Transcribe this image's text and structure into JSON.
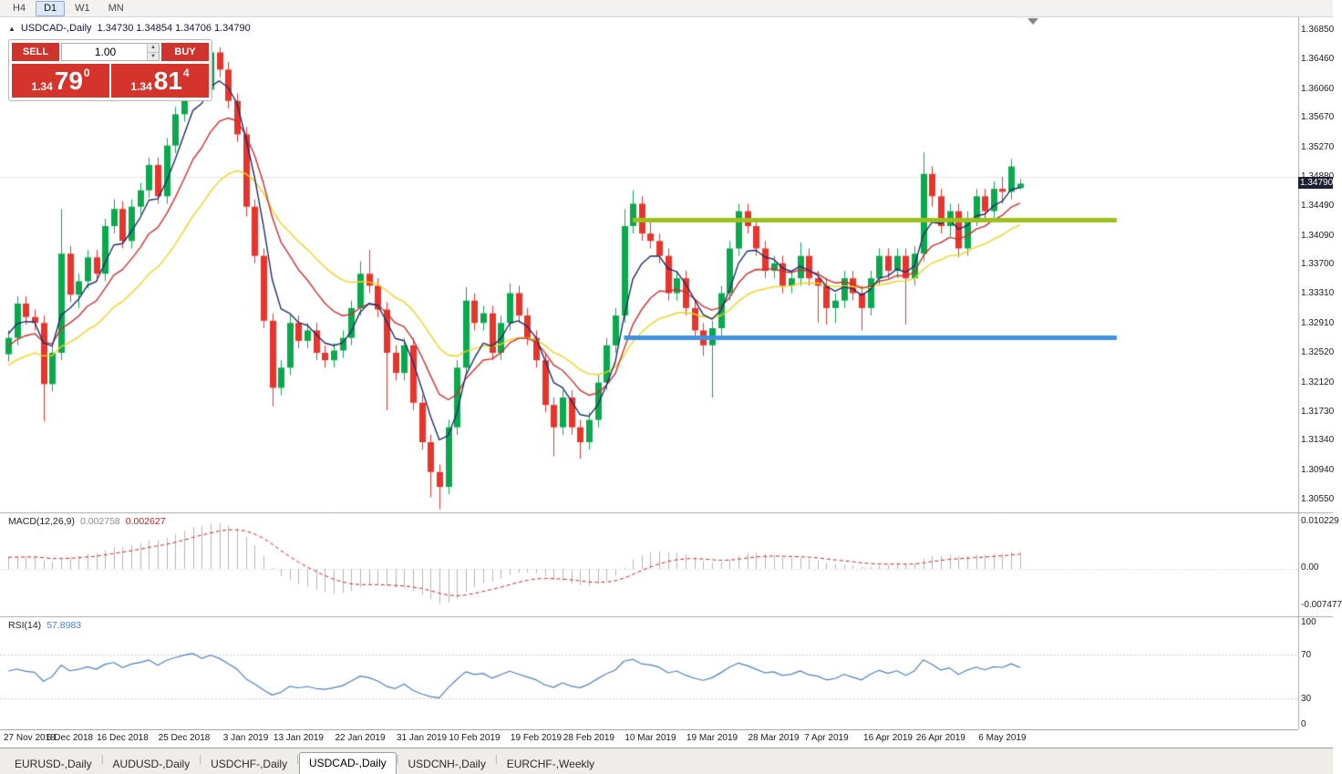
{
  "toolbar": {
    "timeframes": [
      "H4",
      "D1",
      "W1",
      "MN"
    ],
    "active_timeframe": "D1"
  },
  "chart": {
    "symbol": "USDCAD-,Daily",
    "ohlc": "1.34730 1.34854 1.34706 1.34790"
  },
  "trade_panel": {
    "sell_label": "SELL",
    "buy_label": "BUY",
    "volume": "1.00",
    "sell_price": {
      "prefix": "1.34",
      "big": "79",
      "sup": "0"
    },
    "buy_price": {
      "prefix": "1.34",
      "big": "81",
      "sup": "4"
    }
  },
  "price_axis": {
    "labels": [
      "1.36850",
      "1.36460",
      "1.36060",
      "1.35670",
      "1.35270",
      "1.34880",
      "1.34490",
      "1.34090",
      "1.33700",
      "1.33310",
      "1.32910",
      "1.32520",
      "1.32120",
      "1.31730",
      "1.31340",
      "1.30940",
      "1.30550"
    ],
    "current": "1.34790"
  },
  "macd": {
    "name": "MACD(12,26,9)",
    "value_main": "0.002758",
    "value_signal": "0.002627",
    "axis_labels": [
      "0.010229",
      "0.00",
      "-0.007477"
    ]
  },
  "rsi": {
    "name": "RSI(14)",
    "value": "57.8983",
    "axis_labels": [
      "100",
      "70",
      "30",
      "0"
    ]
  },
  "date_axis": {
    "labels": [
      "27 Nov 2018",
      "6 Dec 2018",
      "16 Dec 2018",
      "25 Dec 2018",
      "3 Jan 2019",
      "13 Jan 2019",
      "22 Jan 2019",
      "31 Jan 2019",
      "10 Feb 2019",
      "19 Feb 2019",
      "28 Feb 2019",
      "10 Mar 2019",
      "19 Mar 2019",
      "28 Mar 2019",
      "7 Apr 2019",
      "16 Apr 2019",
      "26 Apr 2019",
      "6 May 2019"
    ]
  },
  "tabs": {
    "items": [
      "EURUSD-,Daily",
      "AUDUSD-,Daily",
      "USDCHF-,Daily",
      "USDCAD-,Daily",
      "USDCNH-,Daily",
      "EURCHF-,Weekly"
    ],
    "active": "USDCAD-,Daily"
  },
  "chart_data": {
    "type": "candlestick",
    "symbol": "USDCAD",
    "timeframe": "Daily",
    "y_range": [
      1.3055,
      1.3685
    ],
    "x_labels": [
      "27 Nov 2018",
      "6 Dec 2018",
      "16 Dec 2018",
      "25 Dec 2018",
      "3 Jan 2019",
      "13 Jan 2019",
      "22 Jan 2019",
      "31 Jan 2019",
      "10 Feb 2019",
      "19 Feb 2019",
      "28 Feb 2019",
      "10 Mar 2019",
      "19 Mar 2019",
      "28 Mar 2019",
      "7 Apr 2019",
      "16 Apr 2019",
      "26 Apr 2019",
      "6 May 2019"
    ],
    "candles": [
      [
        1.325,
        1.3282,
        1.324,
        1.3272
      ],
      [
        1.3272,
        1.3328,
        1.3262,
        1.3318
      ],
      [
        1.3318,
        1.3328,
        1.329,
        1.33
      ],
      [
        1.33,
        1.331,
        1.3282,
        1.3292
      ],
      [
        1.3292,
        1.3302,
        1.316,
        1.321
      ],
      [
        1.321,
        1.3262,
        1.32,
        1.3252
      ],
      [
        1.3252,
        1.3445,
        1.3242,
        1.3385
      ],
      [
        1.3385,
        1.3395,
        1.332,
        1.333
      ],
      [
        1.333,
        1.3358,
        1.3312,
        1.3348
      ],
      [
        1.3348,
        1.339,
        1.3338,
        1.338
      ],
      [
        1.338,
        1.339,
        1.3348,
        1.3358
      ],
      [
        1.3358,
        1.3432,
        1.3348,
        1.3422
      ],
      [
        1.3422,
        1.3458,
        1.3412,
        1.3445
      ],
      [
        1.3445,
        1.3455,
        1.3392,
        1.3402
      ],
      [
        1.3402,
        1.3458,
        1.3392,
        1.3448
      ],
      [
        1.3448,
        1.348,
        1.3438,
        1.347
      ],
      [
        1.347,
        1.3514,
        1.346,
        1.3504
      ],
      [
        1.3504,
        1.3514,
        1.3452,
        1.3462
      ],
      [
        1.3462,
        1.354,
        1.3452,
        1.353
      ],
      [
        1.353,
        1.3582,
        1.352,
        1.3572
      ],
      [
        1.3572,
        1.362,
        1.3562,
        1.361
      ],
      [
        1.361,
        1.3652,
        1.36,
        1.3642
      ],
      [
        1.3642,
        1.3652,
        1.3595,
        1.3605
      ],
      [
        1.3605,
        1.3664,
        1.3595,
        1.3655
      ],
      [
        1.3655,
        1.3662,
        1.3622,
        1.3632
      ],
      [
        1.3632,
        1.3642,
        1.358,
        1.359
      ],
      [
        1.359,
        1.36,
        1.3535,
        1.3545
      ],
      [
        1.3545,
        1.3555,
        1.3435,
        1.3448
      ],
      [
        1.3448,
        1.3458,
        1.3372,
        1.3382
      ],
      [
        1.3382,
        1.3392,
        1.3285,
        1.3295
      ],
      [
        1.3295,
        1.3305,
        1.318,
        1.3205
      ],
      [
        1.3205,
        1.3242,
        1.3195,
        1.3232
      ],
      [
        1.3232,
        1.3302,
        1.3222,
        1.3292
      ],
      [
        1.3292,
        1.3302,
        1.3258,
        1.3268
      ],
      [
        1.3268,
        1.3292,
        1.3258,
        1.3282
      ],
      [
        1.3282,
        1.3292,
        1.3242,
        1.3252
      ],
      [
        1.3252,
        1.3262,
        1.3232,
        1.3242
      ],
      [
        1.3242,
        1.3265,
        1.3232,
        1.3255
      ],
      [
        1.3255,
        1.3282,
        1.3245,
        1.3272
      ],
      [
        1.3272,
        1.3322,
        1.3262,
        1.3312
      ],
      [
        1.3312,
        1.3375,
        1.3302,
        1.3358
      ],
      [
        1.3358,
        1.339,
        1.3332,
        1.3342
      ],
      [
        1.3342,
        1.3352,
        1.33,
        1.331
      ],
      [
        1.331,
        1.332,
        1.3175,
        1.3252
      ],
      [
        1.3252,
        1.3262,
        1.3215,
        1.3225
      ],
      [
        1.3225,
        1.3272,
        1.3215,
        1.3262
      ],
      [
        1.3262,
        1.3272,
        1.3175,
        1.3185
      ],
      [
        1.3185,
        1.3195,
        1.3122,
        1.3132
      ],
      [
        1.3132,
        1.3142,
        1.3058,
        1.3092
      ],
      [
        1.3092,
        1.3102,
        1.3042,
        1.3072
      ],
      [
        1.3072,
        1.3162,
        1.3062,
        1.3152
      ],
      [
        1.3152,
        1.3242,
        1.3142,
        1.3232
      ],
      [
        1.3232,
        1.334,
        1.3222,
        1.3322
      ],
      [
        1.3322,
        1.3332,
        1.3282,
        1.3292
      ],
      [
        1.3292,
        1.3315,
        1.3282,
        1.3305
      ],
      [
        1.3305,
        1.3315,
        1.3242,
        1.3252
      ],
      [
        1.3252,
        1.3302,
        1.3242,
        1.3292
      ],
      [
        1.3292,
        1.3345,
        1.3282,
        1.3332
      ],
      [
        1.3332,
        1.3342,
        1.3292,
        1.3302
      ],
      [
        1.3302,
        1.3312,
        1.3262,
        1.3272
      ],
      [
        1.3272,
        1.3282,
        1.3232,
        1.3242
      ],
      [
        1.3242,
        1.3252,
        1.3172,
        1.3182
      ],
      [
        1.3182,
        1.3192,
        1.3113,
        1.3152
      ],
      [
        1.3152,
        1.3202,
        1.3142,
        1.3192
      ],
      [
        1.3192,
        1.3202,
        1.3142,
        1.3152
      ],
      [
        1.3152,
        1.3162,
        1.311,
        1.3132
      ],
      [
        1.3132,
        1.3172,
        1.3122,
        1.3162
      ],
      [
        1.3162,
        1.3222,
        1.3152,
        1.3212
      ],
      [
        1.3212,
        1.3272,
        1.3202,
        1.3262
      ],
      [
        1.3262,
        1.3312,
        1.3252,
        1.3302
      ],
      [
        1.3302,
        1.3445,
        1.3292,
        1.3422
      ],
      [
        1.3422,
        1.347,
        1.3412,
        1.3452
      ],
      [
        1.3452,
        1.3462,
        1.3402,
        1.3412
      ],
      [
        1.3412,
        1.3432,
        1.3392,
        1.3402
      ],
      [
        1.3402,
        1.3412,
        1.3372,
        1.3382
      ],
      [
        1.3382,
        1.3392,
        1.3322,
        1.3332
      ],
      [
        1.3332,
        1.3362,
        1.3322,
        1.3352
      ],
      [
        1.3352,
        1.3362,
        1.3302,
        1.3312
      ],
      [
        1.3312,
        1.3322,
        1.3272,
        1.3282
      ],
      [
        1.3282,
        1.3292,
        1.3248,
        1.3262
      ],
      [
        1.3262,
        1.3295,
        1.3192,
        1.3285
      ],
      [
        1.3285,
        1.3342,
        1.3275,
        1.3332
      ],
      [
        1.3332,
        1.3402,
        1.3322,
        1.3392
      ],
      [
        1.3392,
        1.3452,
        1.3382,
        1.3442
      ],
      [
        1.3442,
        1.3452,
        1.3412,
        1.3422
      ],
      [
        1.3422,
        1.3432,
        1.3382,
        1.3392
      ],
      [
        1.3392,
        1.3402,
        1.3352,
        1.3362
      ],
      [
        1.3362,
        1.3382,
        1.3352,
        1.3372
      ],
      [
        1.3372,
        1.3382,
        1.3332,
        1.3342
      ],
      [
        1.3342,
        1.3362,
        1.3332,
        1.3352
      ],
      [
        1.3352,
        1.34,
        1.3342,
        1.3382
      ],
      [
        1.3382,
        1.3392,
        1.3342,
        1.3352
      ],
      [
        1.3352,
        1.3362,
        1.3292,
        1.3342
      ],
      [
        1.3342,
        1.3352,
        1.329,
        1.3312
      ],
      [
        1.3312,
        1.3332,
        1.3292,
        1.3322
      ],
      [
        1.3322,
        1.3362,
        1.3312,
        1.3352
      ],
      [
        1.3352,
        1.3362,
        1.3322,
        1.3332
      ],
      [
        1.3332,
        1.3342,
        1.3282,
        1.3312
      ],
      [
        1.3312,
        1.3362,
        1.3302,
        1.3352
      ],
      [
        1.3352,
        1.3392,
        1.3342,
        1.3382
      ],
      [
        1.3382,
        1.3392,
        1.3352,
        1.3362
      ],
      [
        1.3362,
        1.3392,
        1.3352,
        1.3382
      ],
      [
        1.3382,
        1.3392,
        1.329,
        1.3352
      ],
      [
        1.3352,
        1.3395,
        1.3342,
        1.3385
      ],
      [
        1.3385,
        1.3521,
        1.3375,
        1.3492
      ],
      [
        1.3492,
        1.3502,
        1.3448,
        1.3462
      ],
      [
        1.3462,
        1.3472,
        1.3412,
        1.3422
      ],
      [
        1.3422,
        1.3452,
        1.3408,
        1.3442
      ],
      [
        1.3442,
        1.3452,
        1.338,
        1.3392
      ],
      [
        1.3392,
        1.3442,
        1.3382,
        1.3432
      ],
      [
        1.3432,
        1.3472,
        1.3422,
        1.3462
      ],
      [
        1.3462,
        1.3472,
        1.3432,
        1.3442
      ],
      [
        1.3442,
        1.3482,
        1.3432,
        1.3472
      ],
      [
        1.3472,
        1.3488,
        1.3452,
        1.3468
      ],
      [
        1.3468,
        1.3512,
        1.3458,
        1.3502
      ],
      [
        1.3473,
        1.34854,
        1.34706,
        1.3479
      ]
    ],
    "overlays": {
      "grid_level": 1.3488,
      "resistance": {
        "level": 1.343,
        "from": 71,
        "to": 126
      },
      "support": {
        "level": 1.3272,
        "from": 70,
        "to": 126
      }
    },
    "indicators": {
      "macd": {
        "fast": 12,
        "slow": 26,
        "signal": 9,
        "current": [
          0.002758,
          0.002627
        ]
      },
      "rsi": {
        "period": 14,
        "current": 57.8983
      }
    },
    "colors": {
      "candle_up": "#0ba84e",
      "candle_down": "#e8342b",
      "ma_fast": "#1d2d6b",
      "ma_med": "#cf2e2e",
      "ma_slow": "#f2cf1b",
      "hline_green": "#9cc01d",
      "hline_blue": "#4191dc",
      "macd_hist": "#b5b5b5",
      "macd_signal": "#cc2222",
      "rsi_line": "#4f81bd"
    }
  }
}
